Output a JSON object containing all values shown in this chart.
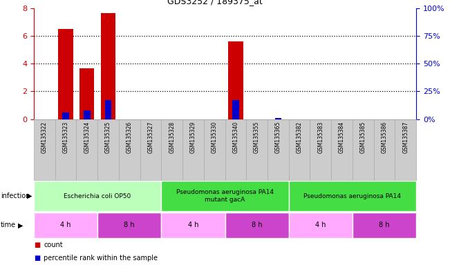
{
  "title": "GDS3252 / 189375_at",
  "samples": [
    "GSM135322",
    "GSM135323",
    "GSM135324",
    "GSM135325",
    "GSM135326",
    "GSM135327",
    "GSM135328",
    "GSM135329",
    "GSM135330",
    "GSM135340",
    "GSM135355",
    "GSM135365",
    "GSM135382",
    "GSM135383",
    "GSM135384",
    "GSM135385",
    "GSM135386",
    "GSM135387"
  ],
  "counts": [
    0,
    6.5,
    3.65,
    7.65,
    0,
    0,
    0,
    0,
    0,
    5.6,
    0,
    0,
    0,
    0,
    0,
    0,
    0,
    0
  ],
  "percentile_pct": [
    0,
    6,
    8,
    17,
    0,
    0,
    0,
    0,
    0,
    17,
    0,
    1,
    0,
    0,
    0,
    0,
    0,
    0
  ],
  "bar_color": "#cc0000",
  "pct_color": "#0000cc",
  "ylim_left": [
    0,
    8
  ],
  "ylim_right": [
    0,
    100
  ],
  "yticks_left": [
    0,
    2,
    4,
    6,
    8
  ],
  "yticks_right": [
    0,
    25,
    50,
    75,
    100
  ],
  "infection_groups": [
    {
      "label": "Escherichia coli OP50",
      "start": 0,
      "end": 6,
      "color": "#bbffbb"
    },
    {
      "label": "Pseudomonas aeruginosa PA14\nmutant gacA",
      "start": 6,
      "end": 12,
      "color": "#44dd44"
    },
    {
      "label": "Pseudomonas aeruginosa PA14",
      "start": 12,
      "end": 18,
      "color": "#44dd44"
    }
  ],
  "time_groups": [
    {
      "label": "4 h",
      "start": 0,
      "end": 3,
      "color": "#ffaaff"
    },
    {
      "label": "8 h",
      "start": 3,
      "end": 6,
      "color": "#cc44cc"
    },
    {
      "label": "4 h",
      "start": 6,
      "end": 9,
      "color": "#ffaaff"
    },
    {
      "label": "8 h",
      "start": 9,
      "end": 12,
      "color": "#cc44cc"
    },
    {
      "label": "4 h",
      "start": 12,
      "end": 15,
      "color": "#ffaaff"
    },
    {
      "label": "8 h",
      "start": 15,
      "end": 18,
      "color": "#cc44cc"
    }
  ],
  "legend_count_label": "count",
  "legend_pct_label": "percentile rank within the sample",
  "background_color": "#ffffff",
  "tick_color_left": "#cc0000",
  "tick_color_right": "#0000cc",
  "sample_bg_color": "#cccccc",
  "sample_edge_color": "#aaaaaa"
}
